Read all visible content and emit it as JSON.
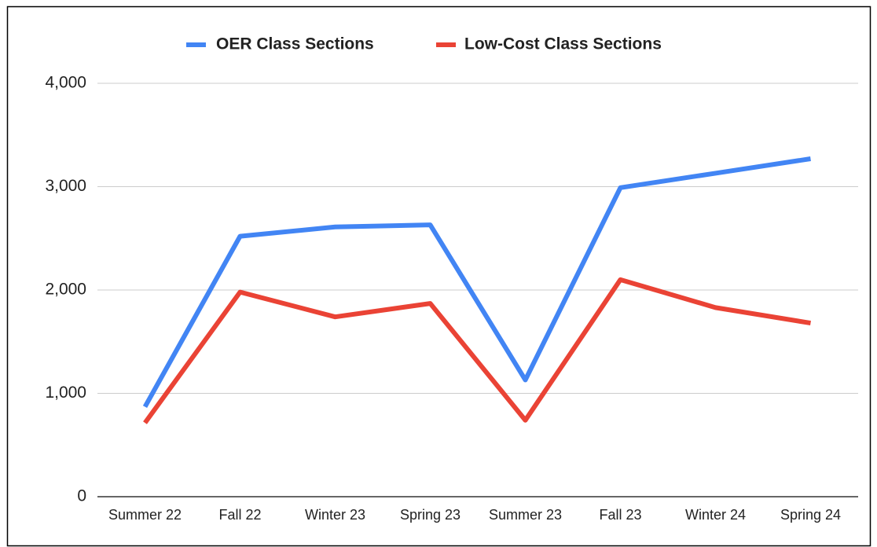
{
  "chart_data": {
    "type": "line",
    "categories": [
      "Summer 22",
      "Fall 22",
      "Winter 23",
      "Spring 23",
      "Summer 23",
      "Fall 23",
      "Winter 24",
      "Spring 24"
    ],
    "series": [
      {
        "name": "OER Class Sections",
        "color": "#4285f4",
        "values": [
          870,
          2520,
          2610,
          2630,
          1130,
          2990,
          3130,
          3270
        ]
      },
      {
        "name": "Low-Cost Class Sections",
        "color": "#ea4335",
        "values": [
          715,
          1980,
          1740,
          1870,
          740,
          2100,
          1830,
          1680
        ]
      }
    ],
    "ylim": [
      0,
      4000
    ],
    "yticks": [
      0,
      {
        "value": 1000,
        "label": "1,000"
      },
      {
        "value": 2000,
        "label": "2,000"
      },
      {
        "value": 3000,
        "label": "3,000"
      },
      {
        "value": 4000,
        "label": "4,000"
      }
    ],
    "grid": true,
    "legend": "top"
  }
}
